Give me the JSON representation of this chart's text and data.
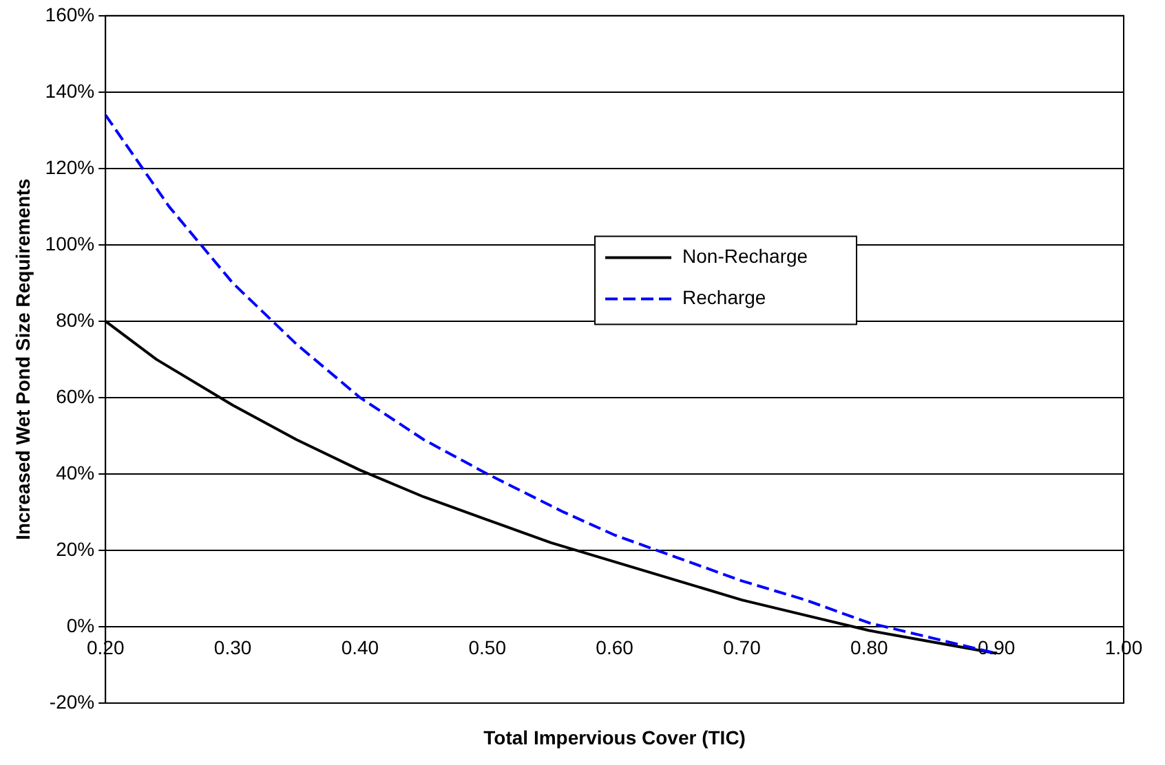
{
  "chart_data": {
    "type": "line",
    "xlabel": "Total Impervious Cover (TIC)",
    "ylabel": "Increased Wet Pond Size Requirements",
    "xlim": [
      0.2,
      1.0
    ],
    "xticks": [
      {
        "value": 0.2,
        "label": "0.20"
      },
      {
        "value": 0.3,
        "label": "0.30"
      },
      {
        "value": 0.4,
        "label": "0.40"
      },
      {
        "value": 0.5,
        "label": "0.50"
      },
      {
        "value": 0.6,
        "label": "0.60"
      },
      {
        "value": 0.7,
        "label": "0.70"
      },
      {
        "value": 0.8,
        "label": "0.80"
      },
      {
        "value": 0.9,
        "label": "0.90"
      },
      {
        "value": 1.0,
        "label": "1.00"
      }
    ],
    "ylim": [
      -20,
      160
    ],
    "yticks": [
      {
        "value": -20,
        "label": "-20%"
      },
      {
        "value": 0,
        "label": "0%"
      },
      {
        "value": 20,
        "label": "20%"
      },
      {
        "value": 40,
        "label": "40%"
      },
      {
        "value": 60,
        "label": "60%"
      },
      {
        "value": 80,
        "label": "80%"
      },
      {
        "value": 100,
        "label": "100%"
      },
      {
        "value": 120,
        "label": "120%"
      },
      {
        "value": 140,
        "label": "140%"
      },
      {
        "value": 160,
        "label": "160%"
      }
    ],
    "grid": "y",
    "legend": "center",
    "marker": "none",
    "series": [
      {
        "name": "Non-Recharge",
        "color": "#000000",
        "line_style": "solid",
        "x": [
          0.2,
          0.24,
          0.3,
          0.35,
          0.4,
          0.45,
          0.5,
          0.55,
          0.6,
          0.65,
          0.7,
          0.75,
          0.8,
          0.85,
          0.9
        ],
        "values": [
          80,
          70,
          58,
          49,
          41,
          34,
          28,
          22,
          17,
          12,
          7,
          3,
          -1,
          -4,
          -7
        ]
      },
      {
        "name": "Recharge",
        "color": "#0000ff",
        "line_style": "dashed",
        "x": [
          0.2,
          0.25,
          0.3,
          0.35,
          0.4,
          0.45,
          0.5,
          0.56,
          0.6,
          0.65,
          0.7,
          0.75,
          0.8,
          0.85,
          0.9
        ],
        "values": [
          134,
          110,
          90,
          74,
          60,
          49,
          40,
          30,
          24,
          18,
          12,
          7,
          1,
          -3,
          -7
        ]
      }
    ]
  }
}
